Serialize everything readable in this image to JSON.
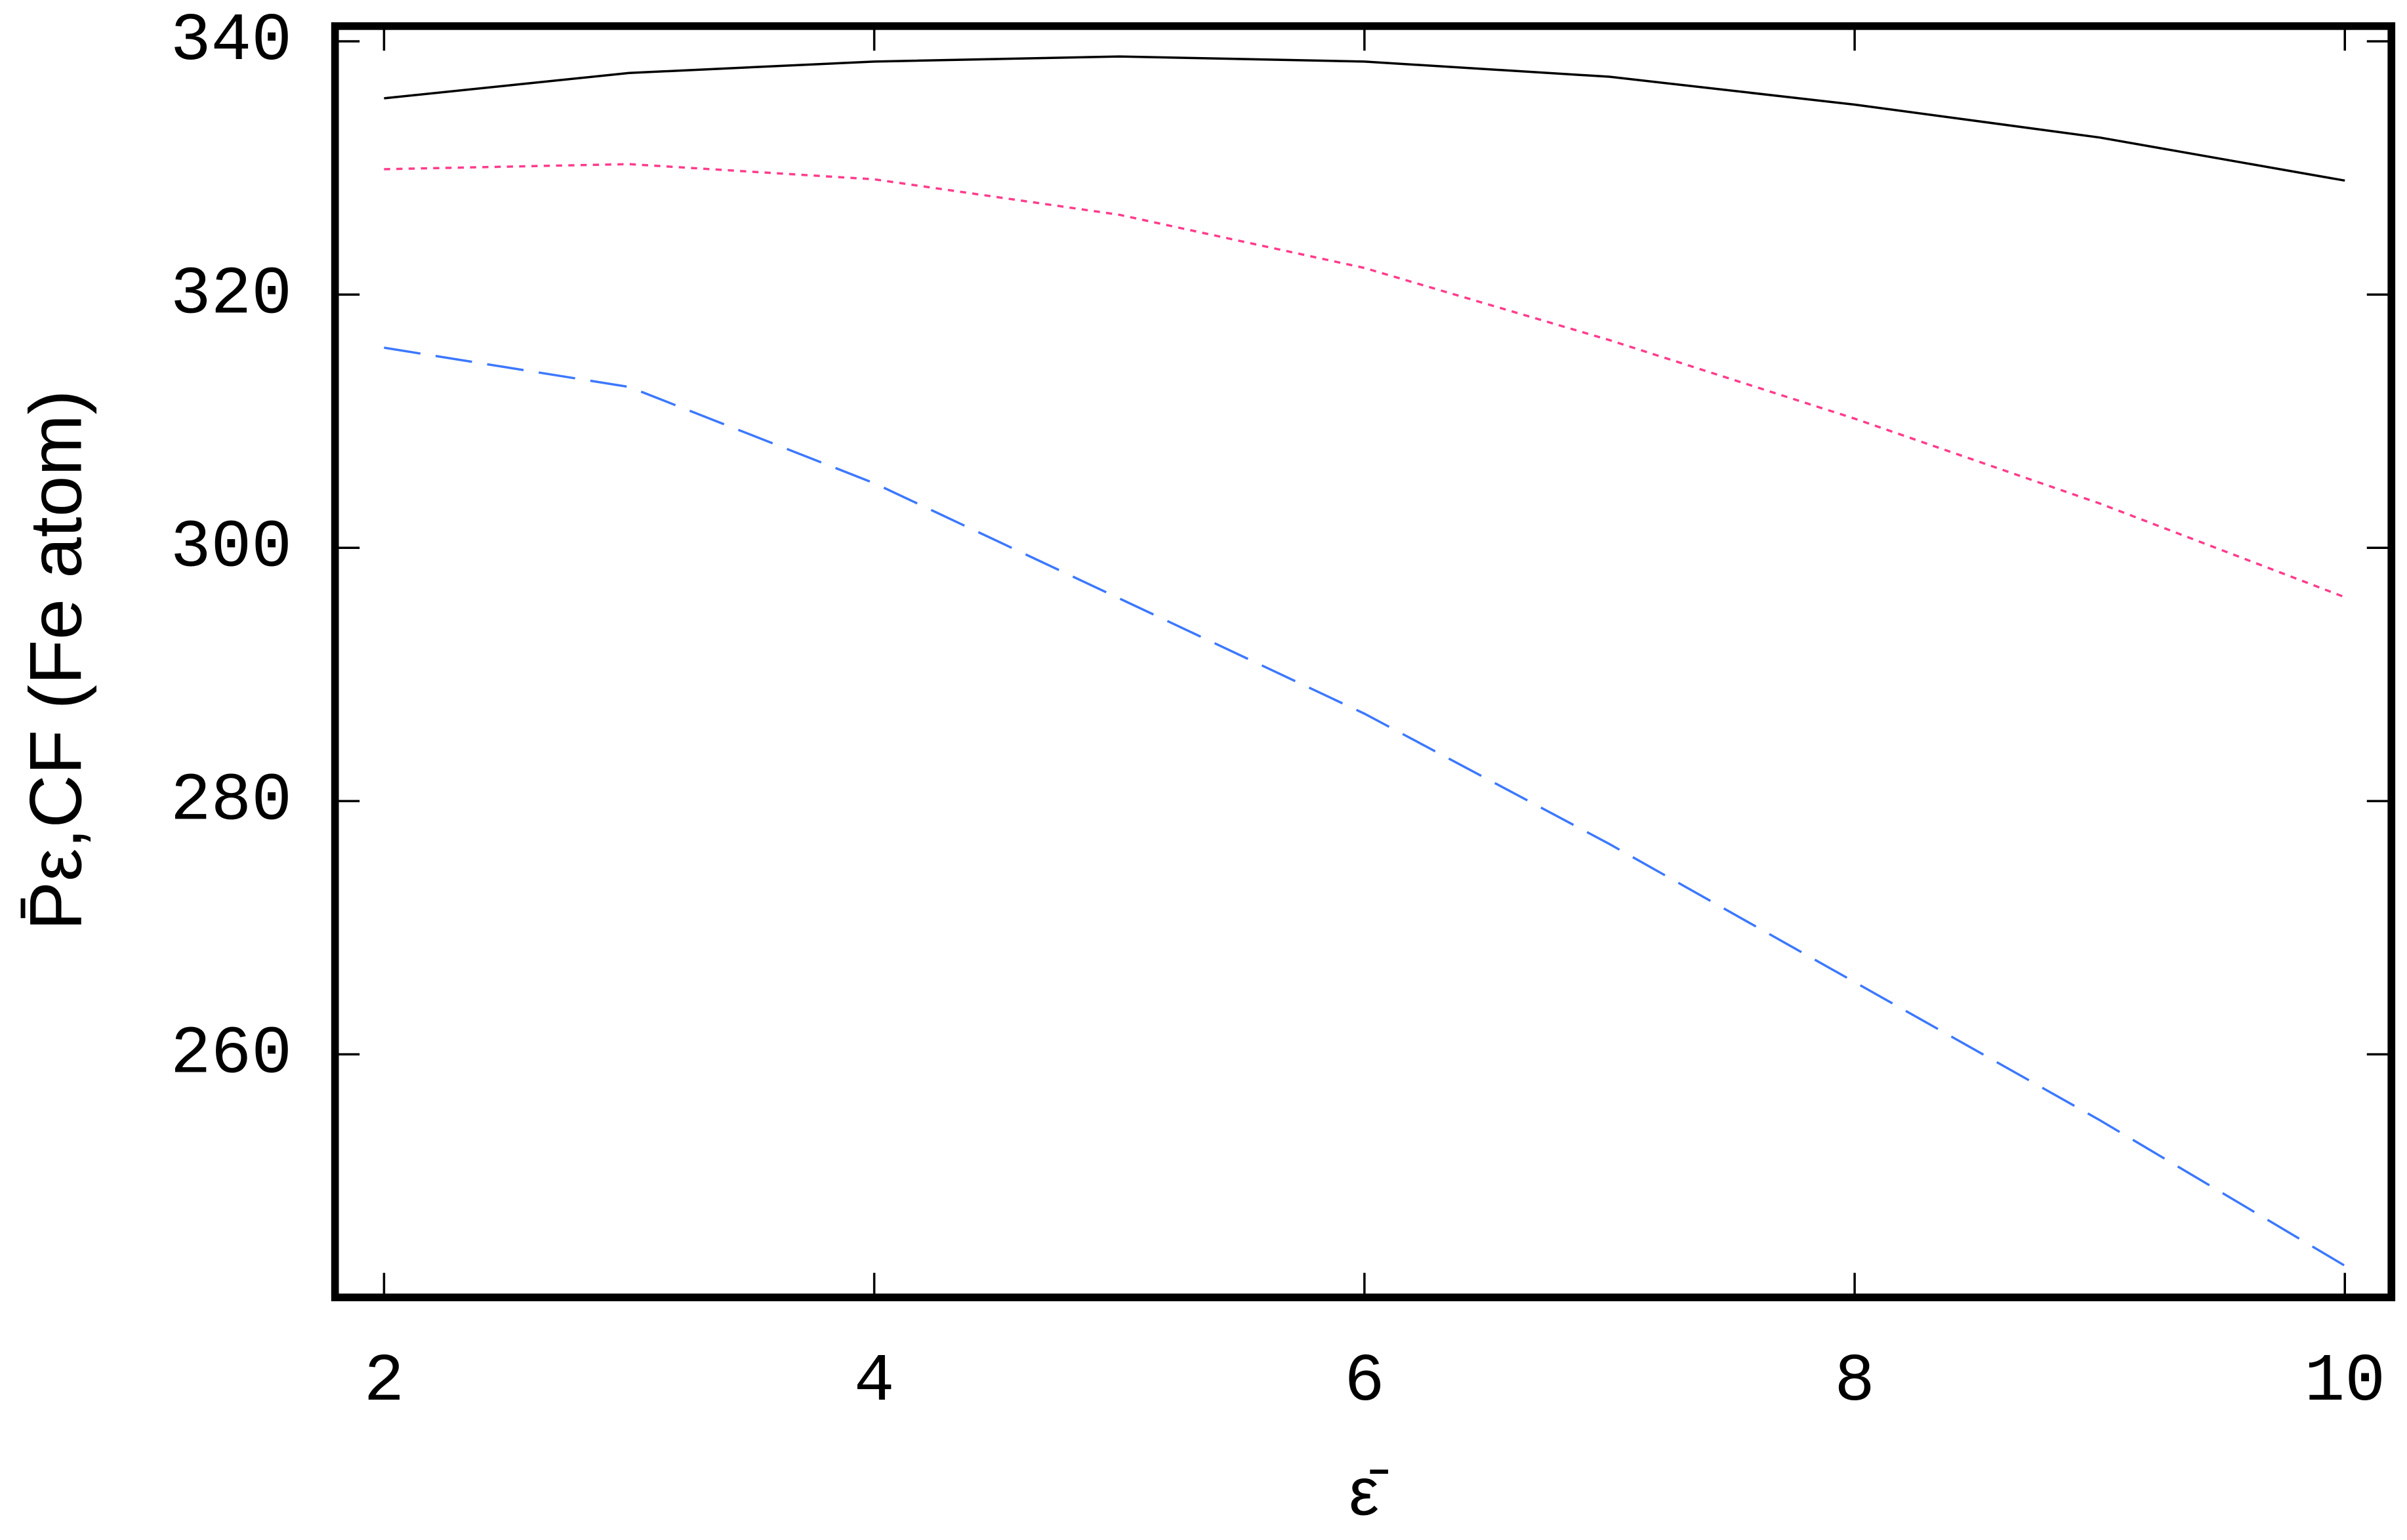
{
  "chart_data": {
    "type": "line",
    "xlabel": "ε̄",
    "ylabel": "P̄ε,CF (Fe atom)",
    "x": [
      2,
      3,
      4,
      5,
      6,
      7,
      8,
      9,
      10
    ],
    "series": [
      {
        "color": "#000000",
        "dash": "solid",
        "values": [
          335.5,
          337.5,
          338.4,
          338.8,
          338.4,
          337.2,
          335.0,
          332.4,
          329.0
        ]
      },
      {
        "color": "#ff3c8c",
        "dash": "dotted",
        "values": [
          329.9,
          330.3,
          329.1,
          326.3,
          322.1,
          316.4,
          310.2,
          303.5,
          296.1
        ]
      },
      {
        "color": "#3c78ff",
        "dash": "dashed",
        "values": [
          315.8,
          312.7,
          305.1,
          296.0,
          286.9,
          276.6,
          265.7,
          254.8,
          243.3
        ]
      }
    ],
    "xlim": [
      1.8,
      10.19
    ],
    "xticks": [
      2,
      4,
      6,
      8,
      10
    ],
    "ylim": [
      240.8,
      341.2
    ],
    "yticks": [
      260,
      280,
      300,
      320,
      340
    ],
    "grid": false
  }
}
